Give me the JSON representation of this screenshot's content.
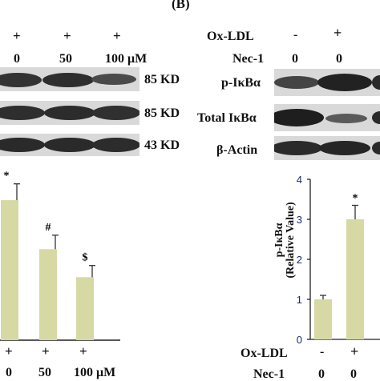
{
  "panel_label": "(B)",
  "left": {
    "treatment_signs": [
      "+",
      "+",
      "+"
    ],
    "dose_values": [
      "0",
      "50",
      "100 μM"
    ],
    "kd_labels": [
      "85 KD",
      "85 KD",
      "43 KD"
    ],
    "bottom_signs": [
      "+",
      "+",
      "+"
    ],
    "bottom_doses": [
      "0",
      "50",
      "100 μM"
    ],
    "sig_marks": [
      "*",
      "#",
      "$"
    ]
  },
  "right": {
    "row1_label": "Ox-LDL",
    "row1_values": [
      "-",
      "+"
    ],
    "row2_label": "Nec-1",
    "row2_values": [
      "0",
      "0"
    ],
    "blot_labels": [
      "p-IκBα",
      "Total IκBα",
      "β-Actin"
    ],
    "bottom_row1_label": "Ox-LDL",
    "bottom_row1_values": [
      "-",
      "+"
    ],
    "bottom_row2_label": "Nec-1",
    "bottom_row2_values": [
      "0",
      "0"
    ]
  },
  "chart_data": [
    {
      "type": "bar",
      "categories": [
        "0",
        "50",
        "100 μM"
      ],
      "values": [
        3.0,
        1.95,
        1.35
      ],
      "errors": [
        0.35,
        0.3,
        0.25
      ],
      "annotations": [
        "*",
        "#",
        "$"
      ],
      "bar_color": "#d6d9a4"
    },
    {
      "type": "bar",
      "categories": [
        "-",
        "+"
      ],
      "values": [
        1.0,
        3.0
      ],
      "errors": [
        0.1,
        0.35
      ],
      "annotations": [
        "",
        "*"
      ],
      "ylabel": "p-IκBα (Relative Value)",
      "ylim": [
        0,
        4
      ],
      "yticks": [
        "0",
        "1",
        "2",
        "3",
        "4"
      ],
      "bar_color": "#d6d9a4"
    }
  ]
}
